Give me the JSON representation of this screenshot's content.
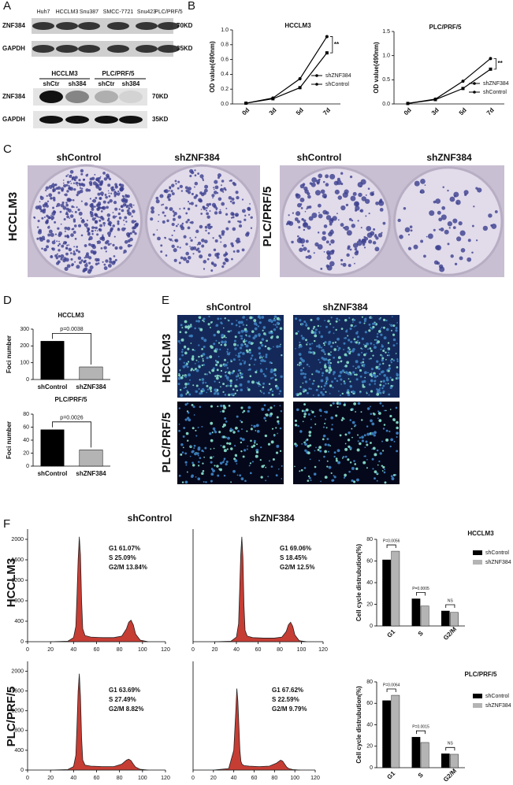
{
  "panel_labels": [
    "A",
    "B",
    "C",
    "D",
    "E",
    "F"
  ],
  "panel_a": {
    "blot1": {
      "lanes": [
        "Huh7",
        "HCCLM3",
        "Snu387",
        "SMCC-7721",
        "Snu423",
        "PLC/PRF/5"
      ],
      "rows": [
        {
          "protein": "ZNF384",
          "size": "70KD"
        },
        {
          "protein": "GAPDH",
          "size": "35KD"
        }
      ]
    },
    "blot2": {
      "groups": [
        "HCCLM3",
        "PLC/PRF/5"
      ],
      "lanes": [
        "shCtr",
        "sh384",
        "shCtr",
        "sh384"
      ],
      "rows": [
        {
          "protein": "ZNF384",
          "size": "70KD"
        },
        {
          "protein": "GAPDH",
          "size": "35KD"
        }
      ]
    }
  },
  "panel_c": {
    "columns": [
      "shControl",
      "shZNF384",
      "shControl",
      "shZNF384"
    ],
    "rows": [
      "HCCLM3",
      "PLC/PRF/5"
    ]
  },
  "panel_e": {
    "columns": [
      "shControl",
      "shZNF384"
    ],
    "rows": [
      "HCCLM3",
      "PLC/PRF/5"
    ]
  },
  "panel_f": {
    "columns": [
      "shControl",
      "shZNF384"
    ],
    "rows": [
      "HCCLM3",
      "PLC/PRF/5"
    ]
  },
  "chart_data": [
    {
      "type": "line",
      "title": "HCCLM3",
      "y_label": "OD value(490nm)",
      "categories": [
        "0d",
        "3d",
        "5d",
        "7d"
      ],
      "series": [
        {
          "name": "shZNF384",
          "color": "#000000",
          "values": [
            0.01,
            0.07,
            0.22,
            0.69
          ]
        },
        {
          "name": "shControl",
          "color": "#000000",
          "values": [
            0.01,
            0.08,
            0.34,
            0.91
          ]
        }
      ],
      "ylim": [
        0,
        1
      ],
      "yticks": [
        {
          "value": 0,
          "label": "0.0"
        },
        0.2,
        0.4,
        0.6,
        0.8,
        {
          "value": 1,
          "label": "1.0"
        }
      ],
      "annotations": [
        "**"
      ]
    },
    {
      "type": "line",
      "title": "PLC/PRF/5",
      "y_label": "OD value(490nm)",
      "categories": [
        "0d",
        "3d",
        "5d",
        "7d"
      ],
      "series": [
        {
          "name": "shZNF384",
          "color": "#000000",
          "values": [
            0.01,
            0.09,
            0.32,
            0.72
          ]
        },
        {
          "name": "shControl",
          "color": "#000000",
          "values": [
            0.01,
            0.1,
            0.47,
            0.94
          ]
        }
      ],
      "ylim": [
        0,
        1.5
      ],
      "yticks": [
        {
          "value": 0,
          "label": "0.0"
        },
        0.5,
        {
          "value": 1,
          "label": "1.0"
        },
        1.5
      ],
      "annotations": [
        "**"
      ]
    },
    {
      "type": "bar",
      "title": "HCCLM3",
      "y_label": "Foci number",
      "categories": [
        "shControl",
        "shZNF384"
      ],
      "values": [
        228,
        75
      ],
      "colors": [
        "#000000",
        "#b4b4b4"
      ],
      "ylim": [
        0,
        300
      ],
      "yticks": [
        0,
        100,
        200,
        300
      ],
      "annotations": [
        "p=0.0038"
      ]
    },
    {
      "type": "bar",
      "title": "PLC/PRF/5",
      "y_label": "Foci number",
      "categories": [
        "shControl",
        "shZNF384"
      ],
      "values": [
        56,
        25
      ],
      "colors": [
        "#000000",
        "#b4b4b4"
      ],
      "ylim": [
        0,
        80
      ],
      "yticks": [
        0,
        20,
        40,
        60,
        80
      ],
      "annotations": [
        "p=0.0026"
      ]
    },
    {
      "type": "area",
      "annotations": [
        "G1 61.07%",
        "S  25.09%",
        "G2/M 13.84%"
      ],
      "color": "#c0281e",
      "x": [
        20,
        35,
        40,
        42,
        43,
        44,
        45,
        46,
        47,
        48,
        50,
        55,
        65,
        75,
        82,
        86,
        88,
        90,
        92,
        94,
        98,
        105
      ],
      "values": [
        0,
        10,
        80,
        300,
        900,
        1600,
        2050,
        1700,
        800,
        250,
        120,
        90,
        80,
        80,
        110,
        250,
        380,
        420,
        330,
        150,
        30,
        0
      ],
      "xlim": [
        0,
        120
      ],
      "xticks": [
        0,
        20,
        40,
        60,
        80,
        100,
        120
      ],
      "ylim": [
        0,
        2200
      ],
      "yticks": [
        0,
        400,
        800,
        1200,
        1600,
        2000
      ]
    },
    {
      "type": "area",
      "annotations": [
        "G1 69.06%",
        "S  18.45%",
        "G2/M 12.5%"
      ],
      "color": "#c0281e",
      "x": [
        20,
        35,
        40,
        42,
        43,
        44,
        45,
        46,
        47,
        48,
        50,
        55,
        65,
        75,
        82,
        86,
        88,
        90,
        92,
        94,
        98,
        105
      ],
      "values": [
        0,
        10,
        90,
        350,
        1000,
        1700,
        2050,
        1650,
        700,
        220,
        110,
        80,
        70,
        70,
        90,
        200,
        330,
        380,
        300,
        130,
        20,
        0
      ],
      "xlim": [
        0,
        120
      ],
      "xticks": [
        0,
        20,
        40,
        60,
        80,
        100,
        120
      ],
      "ylim": [
        0,
        2200
      ]
    },
    {
      "type": "area",
      "annotations": [
        "G1 63.69%",
        "S  27.49%",
        "G2/M 8.82%"
      ],
      "color": "#c0281e",
      "x": [
        20,
        35,
        40,
        42,
        43,
        44,
        45,
        46,
        47,
        48,
        50,
        55,
        65,
        75,
        82,
        86,
        88,
        90,
        92,
        94,
        98,
        105
      ],
      "values": [
        0,
        10,
        70,
        300,
        900,
        1600,
        1950,
        1500,
        650,
        200,
        100,
        80,
        70,
        70,
        120,
        200,
        220,
        190,
        120,
        60,
        15,
        0
      ],
      "xlim": [
        0,
        120
      ],
      "xticks": [
        0,
        20,
        40,
        60,
        80,
        100,
        120
      ],
      "ylim": [
        0,
        2200
      ],
      "yticks": [
        0,
        400,
        800,
        1200,
        1600,
        2000
      ]
    },
    {
      "type": "area",
      "annotations": [
        "G1 67.62%",
        "S  22.59%",
        "G2/M 9.79%"
      ],
      "color": "#c0281e",
      "x": [
        20,
        35,
        40,
        42,
        43,
        44,
        45,
        46,
        47,
        48,
        50,
        55,
        65,
        75,
        82,
        86,
        88,
        90,
        92,
        94,
        98,
        105
      ],
      "values": [
        0,
        30,
        400,
        1200,
        1650,
        1400,
        900,
        400,
        180,
        120,
        90,
        80,
        70,
        80,
        140,
        200,
        180,
        120,
        60,
        30,
        10,
        0
      ],
      "xlim": [
        0,
        120
      ],
      "xticks": [
        0,
        20,
        40,
        60,
        80,
        100,
        120
      ],
      "ylim": [
        0,
        2200
      ]
    },
    {
      "type": "grouped_bar",
      "title": "HCCLM3",
      "y_label": "Cell cycle distrubution(%)",
      "categories": [
        "G1",
        "S",
        "G2/M"
      ],
      "series": [
        {
          "name": "shControl",
          "color": "#000000",
          "values": [
            61.07,
            25.09,
            13.84
          ]
        },
        {
          "name": "shZNF384",
          "color": "#b4b4b4",
          "values": [
            69.06,
            18.45,
            12.5
          ]
        }
      ],
      "ylim": [
        0,
        80
      ],
      "yticks": [
        0,
        20,
        40,
        60,
        80
      ],
      "annotations": [
        "P=0.0056",
        "P=0.0005",
        "NS"
      ]
    },
    {
      "type": "grouped_bar",
      "title": "PLC/PRF/5",
      "y_label": "Cell cycle distrubution(%)",
      "categories": [
        "G1",
        "S",
        "G2/M"
      ],
      "series": [
        {
          "name": "shControl",
          "color": "#000000",
          "values": [
            62.5,
            28.5,
            13
          ]
        },
        {
          "name": "shZNF384",
          "color": "#b4b4b4",
          "values": [
            67.5,
            23.5,
            12.5
          ]
        }
      ],
      "ylim": [
        0,
        80
      ],
      "yticks": [
        0,
        20,
        40,
        60,
        80
      ],
      "annotations": [
        "P=0.0064",
        "P=0.0015",
        "NS"
      ]
    }
  ]
}
